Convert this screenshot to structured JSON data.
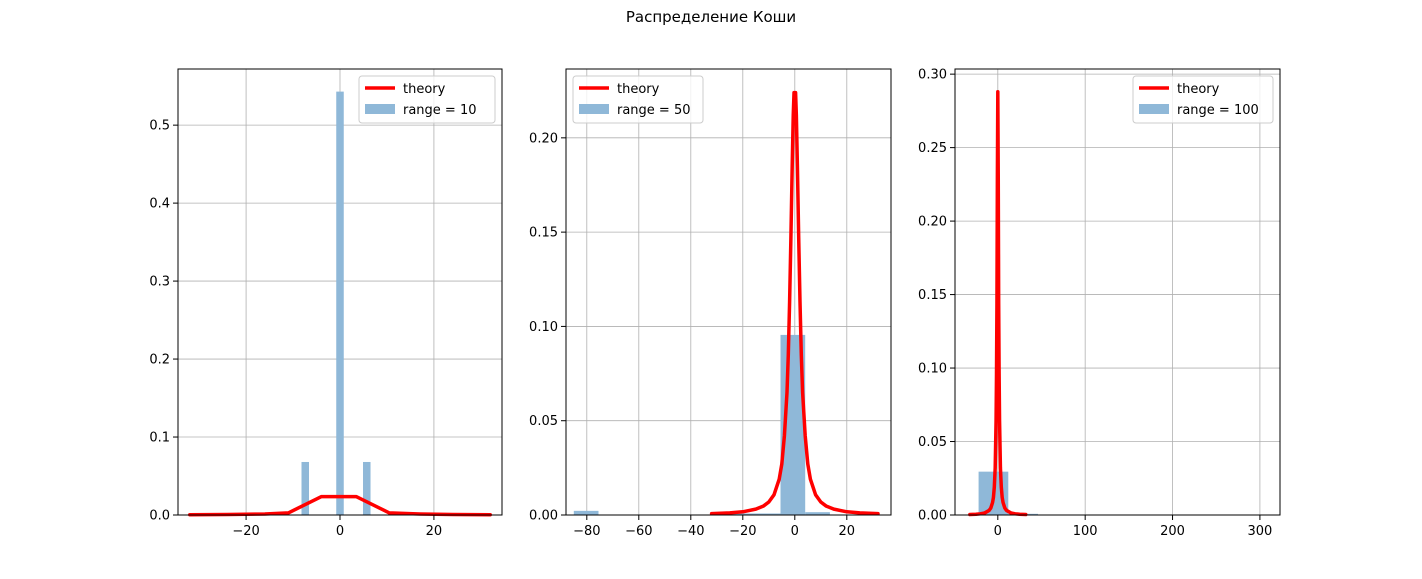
{
  "figure": {
    "title": "Распределение Коши"
  },
  "colors": {
    "theory": "#ff0000",
    "hist": "#8fb8d8",
    "grid": "#b0b0b0",
    "axes": "#000000"
  },
  "chart_data": [
    {
      "type": "bar",
      "xlim": [
        -34.5,
        34.5
      ],
      "ylim": [
        0,
        0.572
      ],
      "xticks": [
        -20,
        0,
        20
      ],
      "xtick_labels": [
        "−20",
        "0",
        "20"
      ],
      "yticks": [
        0.0,
        0.1,
        0.2,
        0.3,
        0.4,
        0.5
      ],
      "ytick_labels": [
        "0.0",
        "0.1",
        "0.2",
        "0.3",
        "0.4",
        "0.5"
      ],
      "grid": true,
      "legend_position": "top-right",
      "legend": {
        "theory": "theory",
        "hist": "range = 10"
      },
      "hist": [
        {
          "x0": -8.2,
          "x1": -6.6,
          "value": 0.068
        },
        {
          "x0": -0.8,
          "x1": 0.8,
          "value": 0.543
        },
        {
          "x0": 4.9,
          "x1": 6.5,
          "value": 0.068
        }
      ],
      "theory": {
        "x": [
          -32,
          -24,
          -16,
          -11,
          -4,
          3.5,
          10.5,
          17,
          24,
          32
        ],
        "y": [
          0.0003,
          0.0006,
          0.0013,
          0.0027,
          0.0235,
          0.0235,
          0.0027,
          0.0013,
          0.0006,
          0.0003
        ]
      }
    },
    {
      "type": "bar",
      "xlim": [
        -88,
        37
      ],
      "ylim": [
        0,
        0.2365
      ],
      "xticks": [
        -80,
        -60,
        -40,
        -20,
        0,
        20
      ],
      "xtick_labels": [
        "−80",
        "−60",
        "−40",
        "−20",
        "0",
        "20"
      ],
      "yticks": [
        0.0,
        0.05,
        0.1,
        0.15,
        0.2
      ],
      "ytick_labels": [
        "0.00",
        "0.05",
        "0.10",
        "0.15",
        "0.20"
      ],
      "grid": true,
      "legend_position": "top-left",
      "legend": {
        "theory": "theory",
        "hist": "range = 50"
      },
      "hist": [
        {
          "x0": -85,
          "x1": -75.5,
          "value": 0.0022
        },
        {
          "x0": -25,
          "x1": -5.5,
          "value": 0.0008
        },
        {
          "x0": -5.5,
          "x1": 4.0,
          "value": 0.0955
        },
        {
          "x0": 4.0,
          "x1": 13.5,
          "value": 0.0015
        }
      ],
      "theory": {
        "x": [
          -32,
          -25,
          -20,
          -15,
          -12,
          -10,
          -8,
          -6,
          -5,
          -4,
          -3,
          -2.5,
          -2,
          -1.5,
          -1,
          -0.6,
          -0.3,
          0,
          0.3,
          0.6,
          1,
          1.5,
          2,
          2.5,
          3,
          4,
          5,
          6,
          8,
          10,
          12,
          15,
          20,
          25,
          32
        ],
        "y": [
          0.0007,
          0.0011,
          0.0017,
          0.0031,
          0.0048,
          0.0069,
          0.0107,
          0.019,
          0.027,
          0.042,
          0.065,
          0.085,
          0.113,
          0.147,
          0.185,
          0.212,
          0.224,
          0.224,
          0.224,
          0.212,
          0.185,
          0.147,
          0.113,
          0.085,
          0.065,
          0.042,
          0.027,
          0.019,
          0.0107,
          0.0069,
          0.0048,
          0.0031,
          0.0017,
          0.0011,
          0.0007
        ]
      }
    },
    {
      "type": "bar",
      "xlim": [
        -49,
        323
      ],
      "ylim": [
        0,
        0.3035
      ],
      "xticks": [
        0,
        100,
        200,
        300
      ],
      "xtick_labels": [
        "0",
        "100",
        "200",
        "300"
      ],
      "yticks": [
        0.0,
        0.05,
        0.1,
        0.15,
        0.2,
        0.25,
        0.3
      ],
      "ytick_labels": [
        "0.00",
        "0.05",
        "0.10",
        "0.15",
        "0.20",
        "0.25",
        "0.30"
      ],
      "grid": true,
      "legend_position": "top-right",
      "legend": {
        "theory": "theory",
        "hist": "range = 100"
      },
      "hist": [
        {
          "x0": -22,
          "x1": 12,
          "value": 0.0295
        },
        {
          "x0": 12,
          "x1": 46,
          "value": 0.0008
        }
      ],
      "theory": {
        "x": [
          -32,
          -25,
          -20,
          -15,
          -10,
          -8,
          -6,
          -5,
          -4,
          -3,
          -2,
          -1.5,
          -1,
          -0.5,
          0,
          0.5,
          1,
          1.5,
          2,
          3,
          4,
          5,
          6,
          8,
          10,
          15,
          20,
          25,
          32
        ],
        "y": [
          0.0003,
          0.0005,
          0.0008,
          0.0014,
          0.0031,
          0.0048,
          0.0085,
          0.012,
          0.019,
          0.032,
          0.064,
          0.096,
          0.144,
          0.23,
          0.288,
          0.23,
          0.144,
          0.096,
          0.064,
          0.032,
          0.019,
          0.012,
          0.0085,
          0.0048,
          0.0031,
          0.0014,
          0.0008,
          0.0005,
          0.0003
        ]
      }
    }
  ]
}
